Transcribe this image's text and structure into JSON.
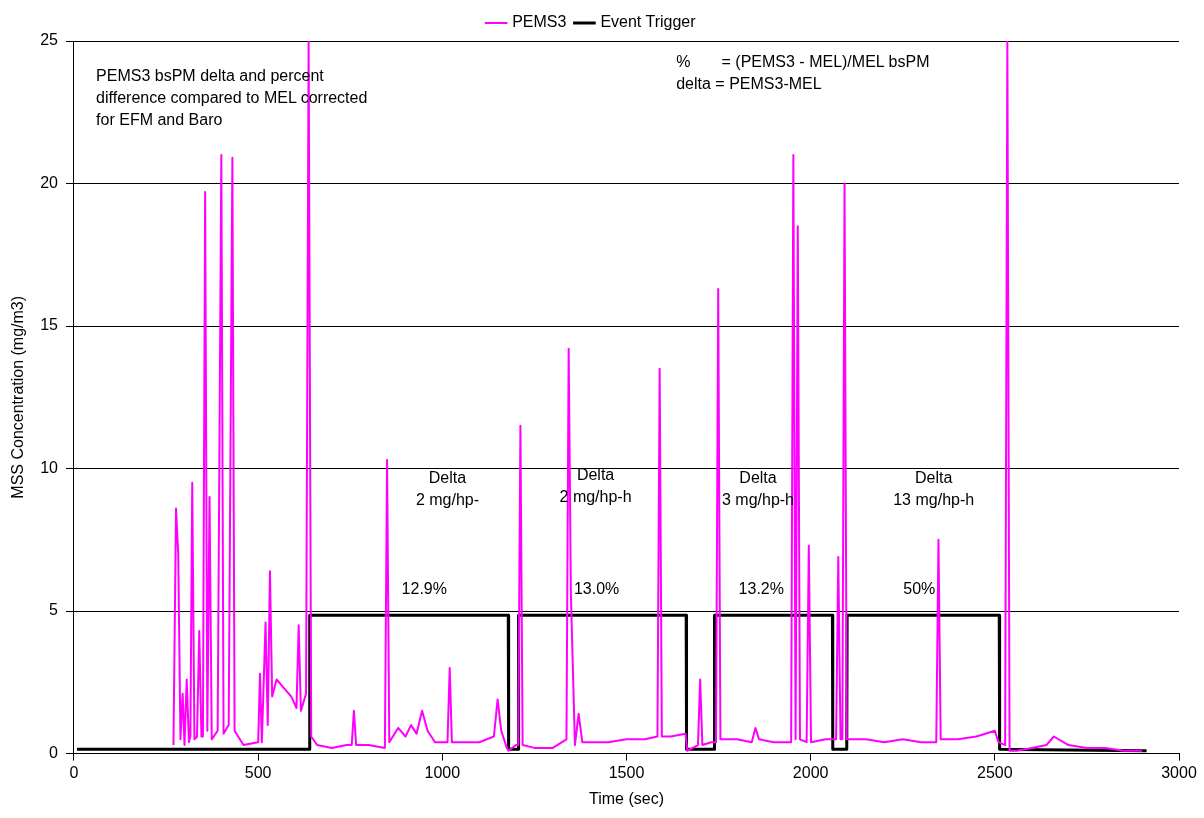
{
  "chart_data": {
    "type": "line",
    "xlabel": "Time (sec)",
    "ylabel": "MSS Concentration (mg/m3)",
    "xlim": [
      0,
      3000
    ],
    "xticks": [
      0,
      500,
      1000,
      1500,
      2000,
      2500,
      3000
    ],
    "ylim": [
      0,
      25
    ],
    "yticks": [
      0,
      5,
      10,
      15,
      20,
      25
    ],
    "grid": "y",
    "legend": "top",
    "marker": "none",
    "line_style": "solid",
    "series": [
      {
        "name": "PEMS3",
        "color": "#ff00ff",
        "x": [
          270,
          277,
          283,
          289,
          295,
          300,
          306,
          312,
          316,
          321,
          327,
          334,
          340,
          346,
          350,
          356,
          362,
          368,
          374,
          390,
          400,
          406,
          420,
          430,
          436,
          460,
          500,
          505,
          510,
          520,
          526,
          532,
          538,
          550,
          570,
          590,
          604,
          610,
          616,
          630,
          637,
          644,
          660,
          700,
          740,
          754,
          760,
          766,
          800,
          844,
          850,
          856,
          880,
          900,
          915,
          930,
          945,
          960,
          980,
          1000,
          1014,
          1020,
          1026,
          1060,
          1100,
          1140,
          1150,
          1160,
          1175,
          1180,
          1200,
          1206,
          1212,
          1218,
          1250,
          1300,
          1337,
          1343,
          1349,
          1360,
          1370,
          1380,
          1400,
          1450,
          1500,
          1550,
          1584,
          1590,
          1596,
          1620,
          1660,
          1665,
          1680,
          1694,
          1700,
          1706,
          1730,
          1743,
          1749,
          1755,
          1800,
          1840,
          1850,
          1860,
          1900,
          1947,
          1953,
          1959,
          1965,
          1971,
          1989,
          1995,
          2001,
          2040,
          2069,
          2075,
          2081,
          2086,
          2092,
          2098,
          2150,
          2200,
          2250,
          2300,
          2341,
          2347,
          2353,
          2400,
          2450,
          2500,
          2510,
          2528,
          2534,
          2540,
          2560,
          2600,
          2640,
          2660,
          2700,
          2750,
          2800,
          2850,
          2900
        ],
        "values": [
          0.3,
          8.6,
          7.0,
          0.5,
          2.1,
          0.3,
          2.6,
          0.4,
          0.6,
          9.5,
          0.5,
          0.6,
          4.3,
          0.6,
          0.6,
          19.7,
          0.8,
          9.0,
          0.5,
          0.8,
          21.0,
          0.7,
          1.0,
          20.9,
          0.8,
          0.3,
          0.4,
          2.8,
          0.4,
          4.6,
          1.0,
          6.4,
          2.0,
          2.6,
          2.3,
          2.0,
          1.6,
          4.5,
          1.5,
          2.1,
          25,
          0.6,
          0.3,
          0.2,
          0.3,
          0.3,
          1.5,
          0.3,
          0.3,
          0.2,
          10.3,
          0.4,
          0.9,
          0.6,
          1.0,
          0.7,
          1.5,
          0.8,
          0.4,
          0.4,
          0.4,
          3.0,
          0.4,
          0.4,
          0.4,
          0.6,
          1.9,
          0.8,
          0.2,
          0.1,
          0.3,
          0.3,
          11.5,
          0.3,
          0.2,
          0.2,
          0.5,
          14.2,
          5.6,
          0.3,
          1.4,
          0.4,
          0.4,
          0.4,
          0.5,
          0.5,
          0.6,
          13.5,
          0.6,
          0.6,
          0.7,
          0.1,
          0.2,
          0.3,
          2.6,
          0.3,
          0.4,
          0.4,
          16.3,
          0.5,
          0.5,
          0.4,
          0.9,
          0.5,
          0.4,
          0.4,
          21.0,
          0.5,
          18.5,
          0.5,
          0.4,
          7.3,
          0.4,
          0.5,
          0.5,
          6.9,
          0.5,
          0.5,
          20.0,
          0.5,
          0.5,
          0.4,
          0.5,
          0.4,
          0.4,
          7.5,
          0.5,
          0.5,
          0.6,
          0.8,
          0.4,
          0.3,
          25,
          0.1,
          0.1,
          0.2,
          0.3,
          0.6,
          0.3,
          0.2,
          0.2,
          0.1,
          0.1
        ]
      },
      {
        "name": "Event Trigger",
        "color": "#000000",
        "x": [
          8,
          639,
          640,
          1179,
          1180,
          1206,
          1207,
          1662,
          1663,
          1738,
          1739,
          2059,
          2060,
          2098,
          2099,
          2512,
          2513,
          2912
        ],
        "values": [
          0.15,
          0.15,
          4.85,
          4.85,
          0.15,
          0.15,
          4.85,
          4.85,
          0.15,
          0.15,
          4.85,
          4.85,
          0.15,
          0.15,
          4.85,
          4.85,
          0.15,
          0.1
        ]
      }
    ],
    "annotations": [
      "PEMS3 bsPM delta and percent\ndifference compared to MEL corrected\nfor EFM and Baro",
      "%       = (PEMS3 - MEL)/MEL bsPM\ndelta = PEMS3-MEL",
      "Delta\n2 mg/hp-",
      "Delta\n2 mg/hp-h",
      "Delta\n3 mg/hp-h",
      "Delta\n13 mg/hp-h",
      "12.9%",
      "13.0%",
      "13.2%",
      "50%"
    ]
  }
}
